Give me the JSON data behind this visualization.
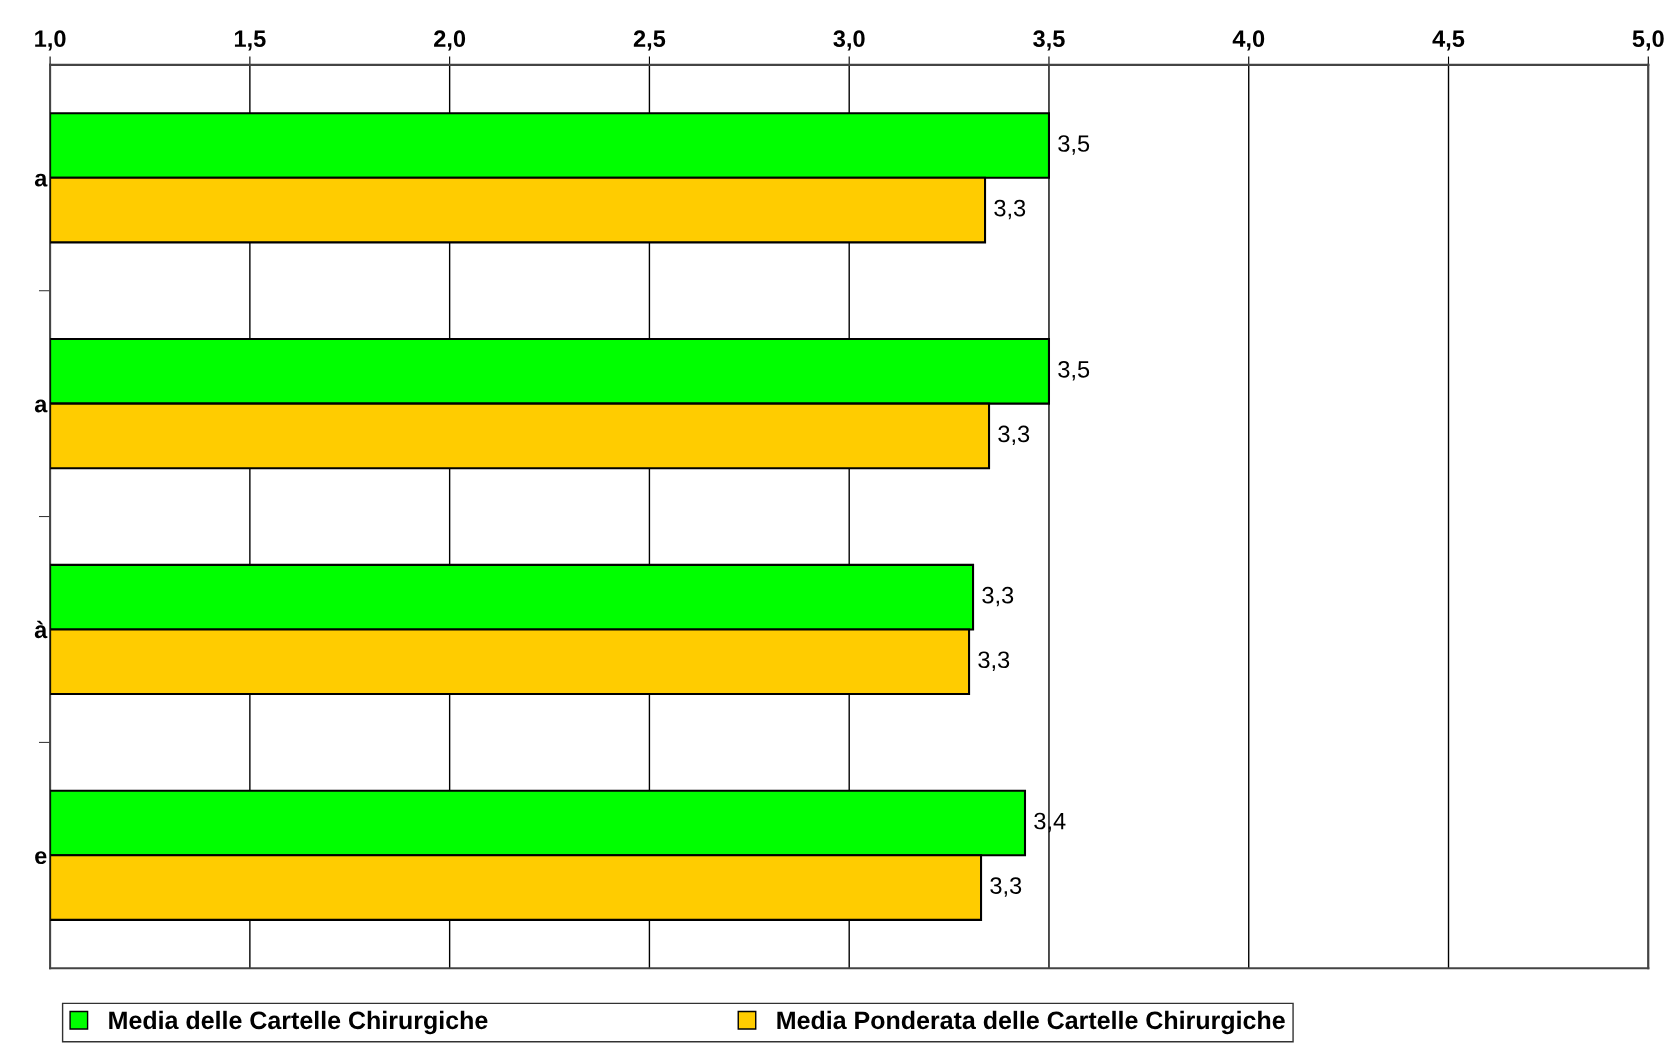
{
  "chart_data": {
    "type": "bar",
    "orientation": "horizontal",
    "categories": [
      "a",
      "a",
      "à",
      "e"
    ],
    "series": [
      {
        "name": "Media delle Cartelle Chirurgiche",
        "color": "#00ff00",
        "values": [
          3.5,
          3.5,
          3.31,
          3.44
        ],
        "value_labels": [
          "3,5",
          "3,5",
          "3,3",
          "3,4"
        ]
      },
      {
        "name": "Media Ponderata delle Cartelle Chirurgiche",
        "color": "#ffcc00",
        "values": [
          3.34,
          3.35,
          3.3,
          3.33
        ],
        "value_labels": [
          "3,3",
          "3,3",
          "3,3",
          "3,3"
        ]
      }
    ],
    "xlim": [
      1.0,
      5.0
    ],
    "xticks": [
      {
        "value": 1.0,
        "label": "1,0"
      },
      {
        "value": 1.5,
        "label": "1,5"
      },
      {
        "value": 2.0,
        "label": "2,0"
      },
      {
        "value": 2.5,
        "label": "2,5"
      },
      {
        "value": 3.0,
        "label": "3,0"
      },
      {
        "value": 3.5,
        "label": "3,5"
      },
      {
        "value": 4.0,
        "label": "4,0"
      },
      {
        "value": 4.5,
        "label": "4,5"
      },
      {
        "value": 5.0,
        "label": "5,0"
      }
    ],
    "grid": "x",
    "legend": "bottom"
  }
}
